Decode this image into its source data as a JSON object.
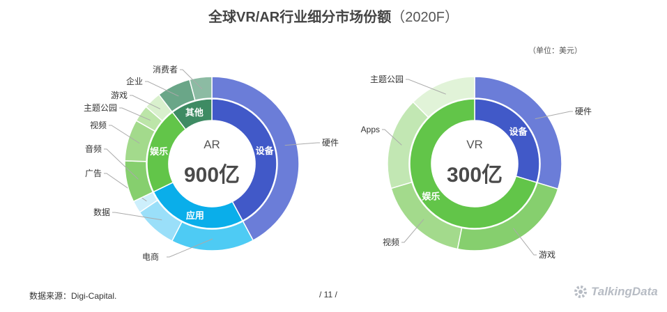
{
  "header": {
    "title": "全球VR/AR行业细分市场份额",
    "title_suffix": "（2020F）",
    "unit": "（单位：美元）"
  },
  "footer": {
    "source": "数据来源：Digi-Capital.",
    "page": "/  11  /",
    "brand": "TalkingData"
  },
  "chart_data": [
    {
      "type": "sunburst",
      "center_label": "AR",
      "total": "900亿",
      "inner": [
        {
          "name": "设备",
          "value": 0.4215,
          "color": "#4159c8"
        },
        {
          "name": "应用",
          "value": 0.2569,
          "color": "#0aaeea"
        },
        {
          "name": "娱乐",
          "value": 0.2175,
          "color": "#62c549"
        },
        {
          "name": "其他",
          "value": 0.1041,
          "color": "#3e8b63"
        }
      ],
      "outer": [
        {
          "name": "硬件",
          "value": 0.4215,
          "color": "#6b7dd8",
          "parent": "设备"
        },
        {
          "name": "电商",
          "value": 0.1542,
          "color": "#4ecbf4",
          "parent": "应用"
        },
        {
          "name": "数据",
          "value": 0.0799,
          "color": "#9adff9",
          "parent": "应用"
        },
        {
          "name": "广告",
          "value": 0.0228,
          "color": "#cdeffc",
          "parent": "应用"
        },
        {
          "name": "音频",
          "value": 0.0768,
          "color": "#86cf6e",
          "parent": "娱乐"
        },
        {
          "name": "视频",
          "value": 0.0773,
          "color": "#a3da8c",
          "parent": "娱乐"
        },
        {
          "name": "主题公园",
          "value": 0.0309,
          "color": "#bce5a8",
          "parent": "娱乐"
        },
        {
          "name": "游戏",
          "value": 0.0325,
          "color": "#d9f0cd",
          "parent": "娱乐"
        },
        {
          "name": "企业",
          "value": 0.0628,
          "color": "#6aa688",
          "parent": "其他"
        },
        {
          "name": "消费者",
          "value": 0.0413,
          "color": "#8cbba3",
          "parent": "其他"
        }
      ]
    },
    {
      "type": "sunburst",
      "center_label": "VR",
      "total": "300亿",
      "inner": [
        {
          "name": "设备",
          "value": 0.2969,
          "color": "#4159c8"
        },
        {
          "name": "娱乐",
          "value": 0.7031,
          "color": "#62c549"
        }
      ],
      "outer": [
        {
          "name": "硬件",
          "value": 0.2969,
          "color": "#6b7dd8",
          "parent": "设备"
        },
        {
          "name": "游戏",
          "value": 0.2346,
          "color": "#86cf6e",
          "parent": "娱乐"
        },
        {
          "name": "视频",
          "value": 0.1727,
          "color": "#a3da8c",
          "parent": "娱乐"
        },
        {
          "name": "Apps",
          "value": 0.171,
          "color": "#c2e7b3",
          "parent": "娱乐"
        },
        {
          "name": "主题公园",
          "value": 0.1248,
          "color": "#e1f3d8",
          "parent": "娱乐"
        }
      ]
    }
  ]
}
